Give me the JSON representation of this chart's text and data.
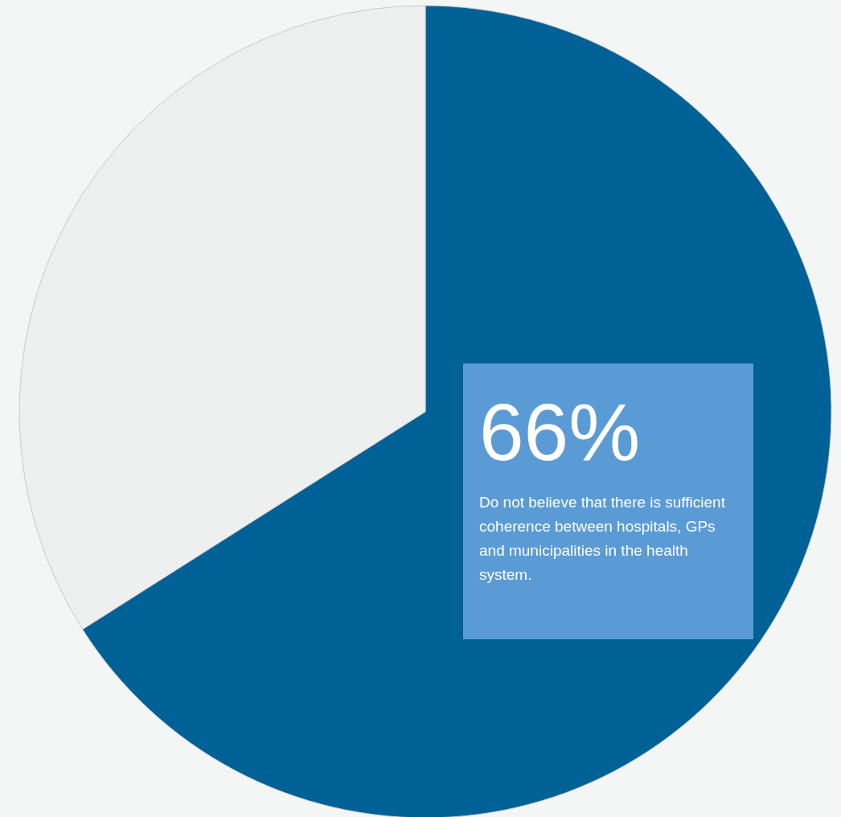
{
  "chart_data": {
    "type": "pie",
    "categories": [
      "Do not believe that there is sufficient coherence between hospitals, GPs and municipalities in the health system.",
      null
    ],
    "values": [
      66,
      34
    ],
    "colors": [
      "#006196",
      "#eef0f0"
    ],
    "value_labels": [
      "66%",
      null
    ]
  }
}
